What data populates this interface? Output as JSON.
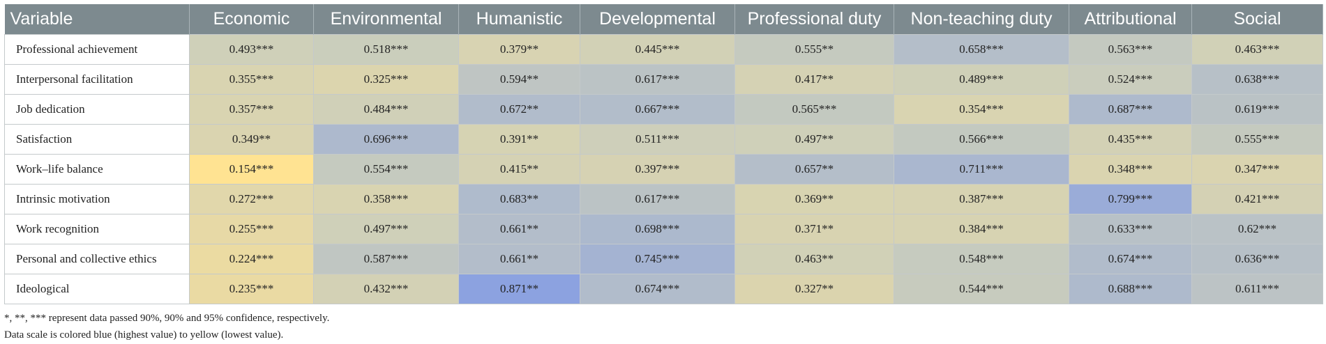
{
  "columns": [
    "Variable",
    "Economic",
    "Environmental",
    "Humanistic",
    "Developmental",
    "Professional duty",
    "Non-teaching duty",
    "Attributional",
    "Social"
  ],
  "rows": [
    {
      "label": "Professional achievement",
      "cells": [
        "0.493***",
        "0.518***",
        "0.379**",
        "0.445***",
        "0.555**",
        "0.658***",
        "0.563***",
        "0.463***"
      ],
      "values": [
        0.493,
        0.518,
        0.379,
        0.445,
        0.555,
        0.658,
        0.563,
        0.463
      ]
    },
    {
      "label": "Interpersonal facilitation",
      "cells": [
        "0.355***",
        "0.325***",
        "0.594**",
        "0.617***",
        "0.417**",
        "0.489***",
        "0.524***",
        "0.638***"
      ],
      "values": [
        0.355,
        0.325,
        0.594,
        0.617,
        0.417,
        0.489,
        0.524,
        0.638
      ]
    },
    {
      "label": "Job dedication",
      "cells": [
        "0.357***",
        "0.484***",
        "0.672**",
        "0.667***",
        "0.565***",
        "0.354***",
        "0.687***",
        "0.619***"
      ],
      "values": [
        0.357,
        0.484,
        0.672,
        0.667,
        0.565,
        0.354,
        0.687,
        0.619
      ]
    },
    {
      "label": "Satisfaction",
      "cells": [
        "0.349**",
        "0.696***",
        "0.391**",
        "0.511***",
        "0.497**",
        "0.566***",
        "0.435***",
        "0.555***"
      ],
      "values": [
        0.349,
        0.696,
        0.391,
        0.511,
        0.497,
        0.566,
        0.435,
        0.555
      ]
    },
    {
      "label": "Work–life balance",
      "cells": [
        "0.154***",
        "0.554***",
        "0.415**",
        "0.397***",
        "0.657**",
        "0.711***",
        "0.348***",
        "0.347***"
      ],
      "values": [
        0.154,
        0.554,
        0.415,
        0.397,
        0.657,
        0.711,
        0.348,
        0.347
      ]
    },
    {
      "label": "Intrinsic motivation",
      "cells": [
        "0.272***",
        "0.358***",
        "0.683**",
        "0.617***",
        "0.369**",
        "0.387***",
        "0.799***",
        "0.421***"
      ],
      "values": [
        0.272,
        0.358,
        0.683,
        0.617,
        0.369,
        0.387,
        0.799,
        0.421
      ]
    },
    {
      "label": "Work recognition",
      "cells": [
        "0.255***",
        "0.497***",
        "0.661**",
        "0.698***",
        "0.371**",
        "0.384***",
        "0.633***",
        "0.62***"
      ],
      "values": [
        0.255,
        0.497,
        0.661,
        0.698,
        0.371,
        0.384,
        0.633,
        0.62
      ]
    },
    {
      "label": "Personal and collective ethics",
      "cells": [
        "0.224***",
        "0.587***",
        "0.661**",
        "0.745***",
        "0.463**",
        "0.548***",
        "0.674***",
        "0.636***"
      ],
      "values": [
        0.224,
        0.587,
        0.661,
        0.745,
        0.463,
        0.548,
        0.674,
        0.636
      ]
    },
    {
      "label": "Ideological",
      "cells": [
        "0.235***",
        "0.432***",
        "0.871**",
        "0.674***",
        "0.327**",
        "0.544***",
        "0.688***",
        "0.611***"
      ],
      "values": [
        0.235,
        0.432,
        0.871,
        0.674,
        0.327,
        0.544,
        0.688,
        0.611
      ]
    }
  ],
  "color_scale": {
    "low": "#ffe392",
    "high": "#8ca2e0"
  },
  "notes": [
    "*, **, *** represent data passed 90%, 90% and 95% confidence, respectively.",
    "Data scale is colored blue (highest value) to yellow (lowest value)."
  ]
}
